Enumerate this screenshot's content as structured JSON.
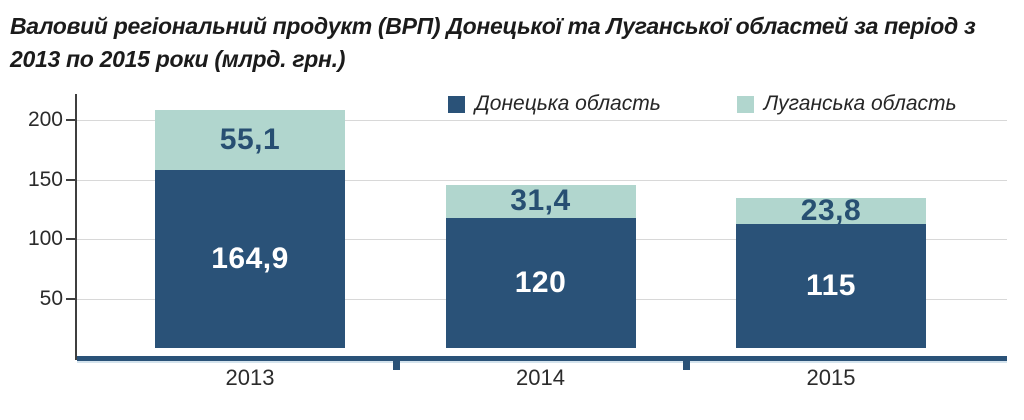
{
  "title": {
    "line1": "Валовий регіональний продукт (ВРП) Донецької та Луганської областей за період з",
    "line2": "2013 по 2015 роки (млрд. грн.)"
  },
  "legend": {
    "items": [
      {
        "label": "Донецька область",
        "color": "#2a5278"
      },
      {
        "label": "Луганська область",
        "color": "#b1d6ce"
      }
    ]
  },
  "colors": {
    "donetsk": "#2a5278",
    "luhansk": "#b1d6ce",
    "axis_line": "#3f3f3f",
    "gridline": "#d8d8d8",
    "baseline": "#2a5278",
    "baseline_shadow": "#9fc0d8",
    "value_on_dark": "#ffffff",
    "value_on_light": "#274f72",
    "text": "#2b2b2b",
    "title_text": "#1b1b1b"
  },
  "chart_data": {
    "type": "bar",
    "stacked": true,
    "title": "Валовий регіональний продукт (ВРП) Донецької та Луганської областей за період з 2013 по 2015 роки (млрд. грн.)",
    "categories": [
      "2013",
      "2014",
      "2015"
    ],
    "series": [
      {
        "name": "Донецька область",
        "color": "#2a5278",
        "values": [
          164.9,
          120,
          115
        ],
        "labels": [
          "164,9",
          "120",
          "115"
        ],
        "label_color": "#ffffff"
      },
      {
        "name": "Луганська область",
        "color": "#b1d6ce",
        "values": [
          55.1,
          31.4,
          23.8
        ],
        "labels": [
          "55,1",
          "31,4",
          "23,8"
        ],
        "label_color": "#274f72"
      }
    ],
    "totals": [
      220,
      151.4,
      138.8
    ],
    "xlabel": "",
    "ylabel": "",
    "yticks": [
      50,
      100,
      150,
      200
    ],
    "ylim": [
      0,
      222
    ],
    "grid": true,
    "legend_position": "top"
  }
}
